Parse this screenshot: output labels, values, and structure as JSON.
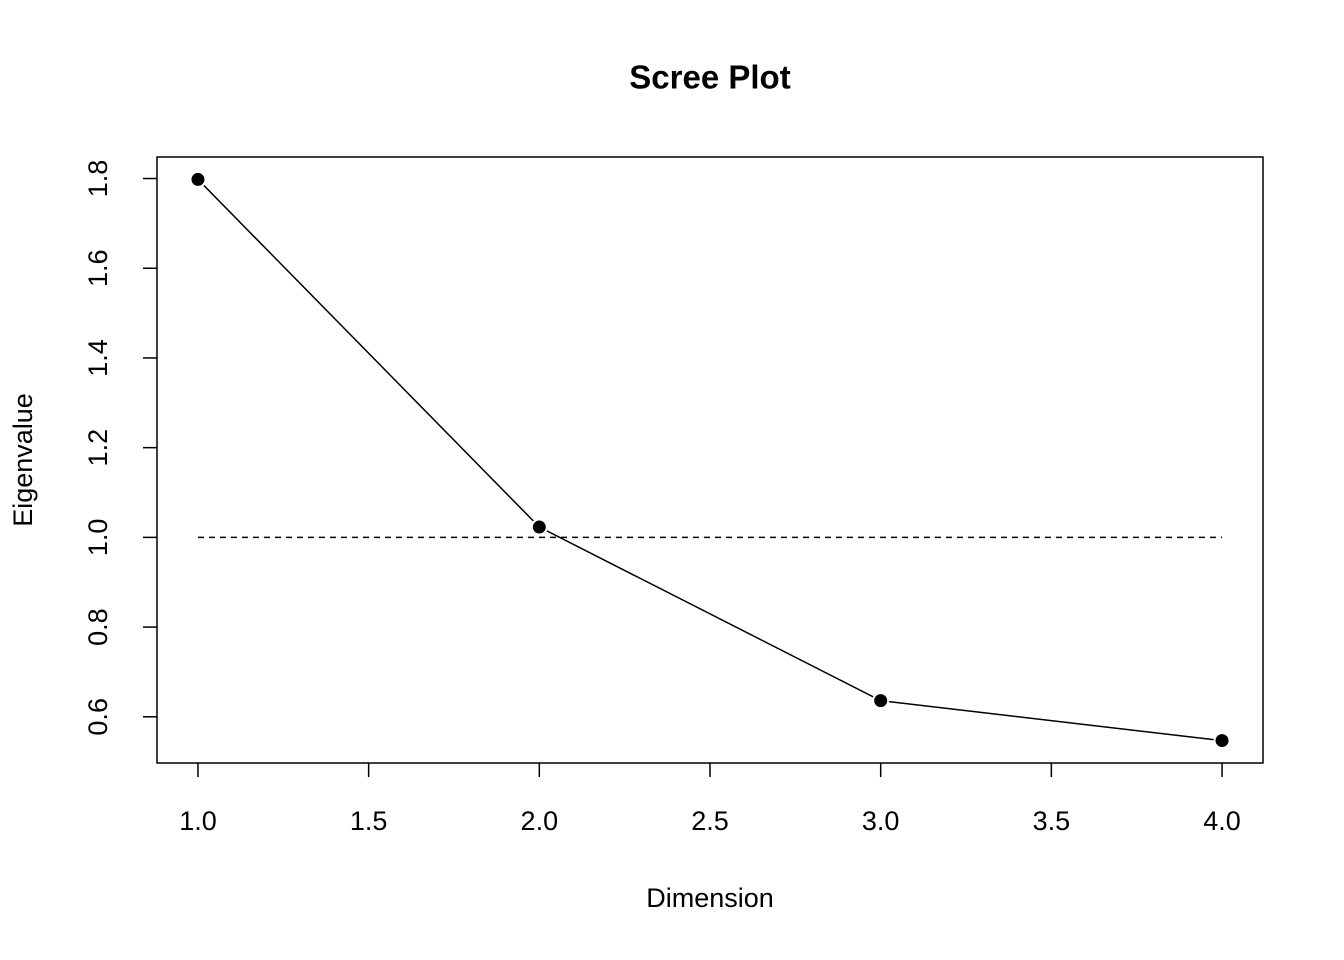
{
  "chart_data": {
    "type": "line",
    "title": "Scree Plot",
    "x_label": "Dimension",
    "y_label": "Eigenvalue",
    "x": [
      1,
      2,
      3,
      4
    ],
    "series": [
      {
        "name": "Eigenvalue",
        "color": "#000000",
        "values": [
          1.798,
          1.023,
          0.636,
          0.547
        ]
      }
    ],
    "reference_line": 1,
    "xlim": [
      0.88,
      4.12
    ],
    "ylim": [
      0.497,
      1.848
    ],
    "xticks": [
      {
        "value": 1,
        "label": "1.0"
      },
      1.5,
      {
        "value": 2,
        "label": "2.0"
      },
      2.5,
      {
        "value": 3,
        "label": "3.0"
      },
      3.5,
      {
        "value": 4,
        "label": "4.0"
      }
    ],
    "yticks": [
      0.6,
      0.8,
      {
        "value": 1,
        "label": "1.0"
      },
      1.2,
      1.4,
      1.6,
      1.8
    ],
    "grid": false
  }
}
